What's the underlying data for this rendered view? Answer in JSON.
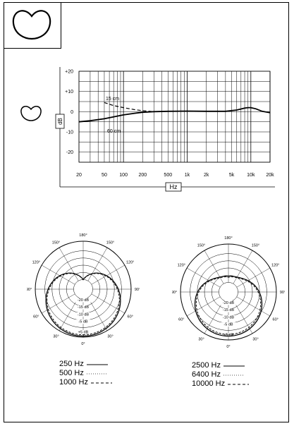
{
  "chart_data": [
    {
      "type": "line",
      "title": "",
      "xlabel": "Hz",
      "ylabel": "dB",
      "x_scale": "log",
      "xlim": [
        20,
        20000
      ],
      "ylim": [
        -25,
        20
      ],
      "x_ticks": [
        "20",
        "50",
        "100",
        "200",
        "500",
        "1k",
        "2k",
        "5k",
        "10k",
        "20k"
      ],
      "x_tick_values": [
        20,
        50,
        100,
        200,
        500,
        1000,
        2000,
        5000,
        10000,
        20000
      ],
      "y_ticks": [
        "+20",
        "+10",
        "0",
        "-10",
        "-20"
      ],
      "y_tick_values": [
        20,
        10,
        0,
        -10,
        -20
      ],
      "grid": true,
      "series": [
        {
          "name": "60 cm",
          "style": "solid",
          "x": [
            20,
            30,
            50,
            80,
            100,
            150,
            200,
            300,
            500,
            1000,
            2000,
            4000,
            6000,
            8000,
            9000,
            10000,
            12000,
            15000,
            20000
          ],
          "y": [
            -5,
            -4.5,
            -3.5,
            -2.2,
            -1.6,
            -0.8,
            -0.3,
            0,
            0.2,
            0.3,
            0.2,
            0.2,
            0.8,
            1.8,
            2,
            2,
            1.4,
            0.2,
            -0.5
          ]
        },
        {
          "name": "15 cm",
          "style": "dashed",
          "x": [
            50,
            70,
            100,
            150,
            200,
            300
          ],
          "y": [
            4.5,
            3,
            2,
            1,
            0.5,
            0
          ]
        }
      ]
    },
    {
      "type": "polar",
      "angle_labels": [
        "180°",
        "150°",
        "150°",
        "120°",
        "120°",
        "90°",
        "90°",
        "60°",
        "60°",
        "30°",
        "30°",
        "0°"
      ],
      "angle_values": [
        180,
        150,
        210,
        120,
        240,
        90,
        270,
        60,
        300,
        30,
        330,
        0
      ],
      "ring_labels": [
        "-20 dB",
        "-15 dB",
        "-10 dB",
        "-5 dB",
        "+5 dB"
      ],
      "series": [
        {
          "name": "250 Hz",
          "style": "solid"
        },
        {
          "name": "500 Hz",
          "style": "dotted"
        },
        {
          "name": "1000 Hz",
          "style": "dashed"
        }
      ]
    },
    {
      "type": "polar",
      "angle_labels": [
        "180°",
        "150°",
        "150°",
        "120°",
        "120°",
        "90°",
        "90°",
        "60°",
        "60°",
        "30°",
        "30°",
        "0°"
      ],
      "angle_values": [
        180,
        150,
        210,
        120,
        240,
        90,
        270,
        60,
        300,
        30,
        330,
        0
      ],
      "ring_labels": [
        "-20 dB",
        "-15 dB",
        "-10 dB",
        "-5 dB",
        "+5 dB"
      ],
      "series": [
        {
          "name": "2500 Hz",
          "style": "solid"
        },
        {
          "name": "6400 Hz",
          "style": "dotted"
        },
        {
          "name": "10000 Hz",
          "style": "dashed"
        }
      ]
    }
  ],
  "icons": {
    "corner": "cardioid-icon",
    "side": "cardioid-icon"
  }
}
